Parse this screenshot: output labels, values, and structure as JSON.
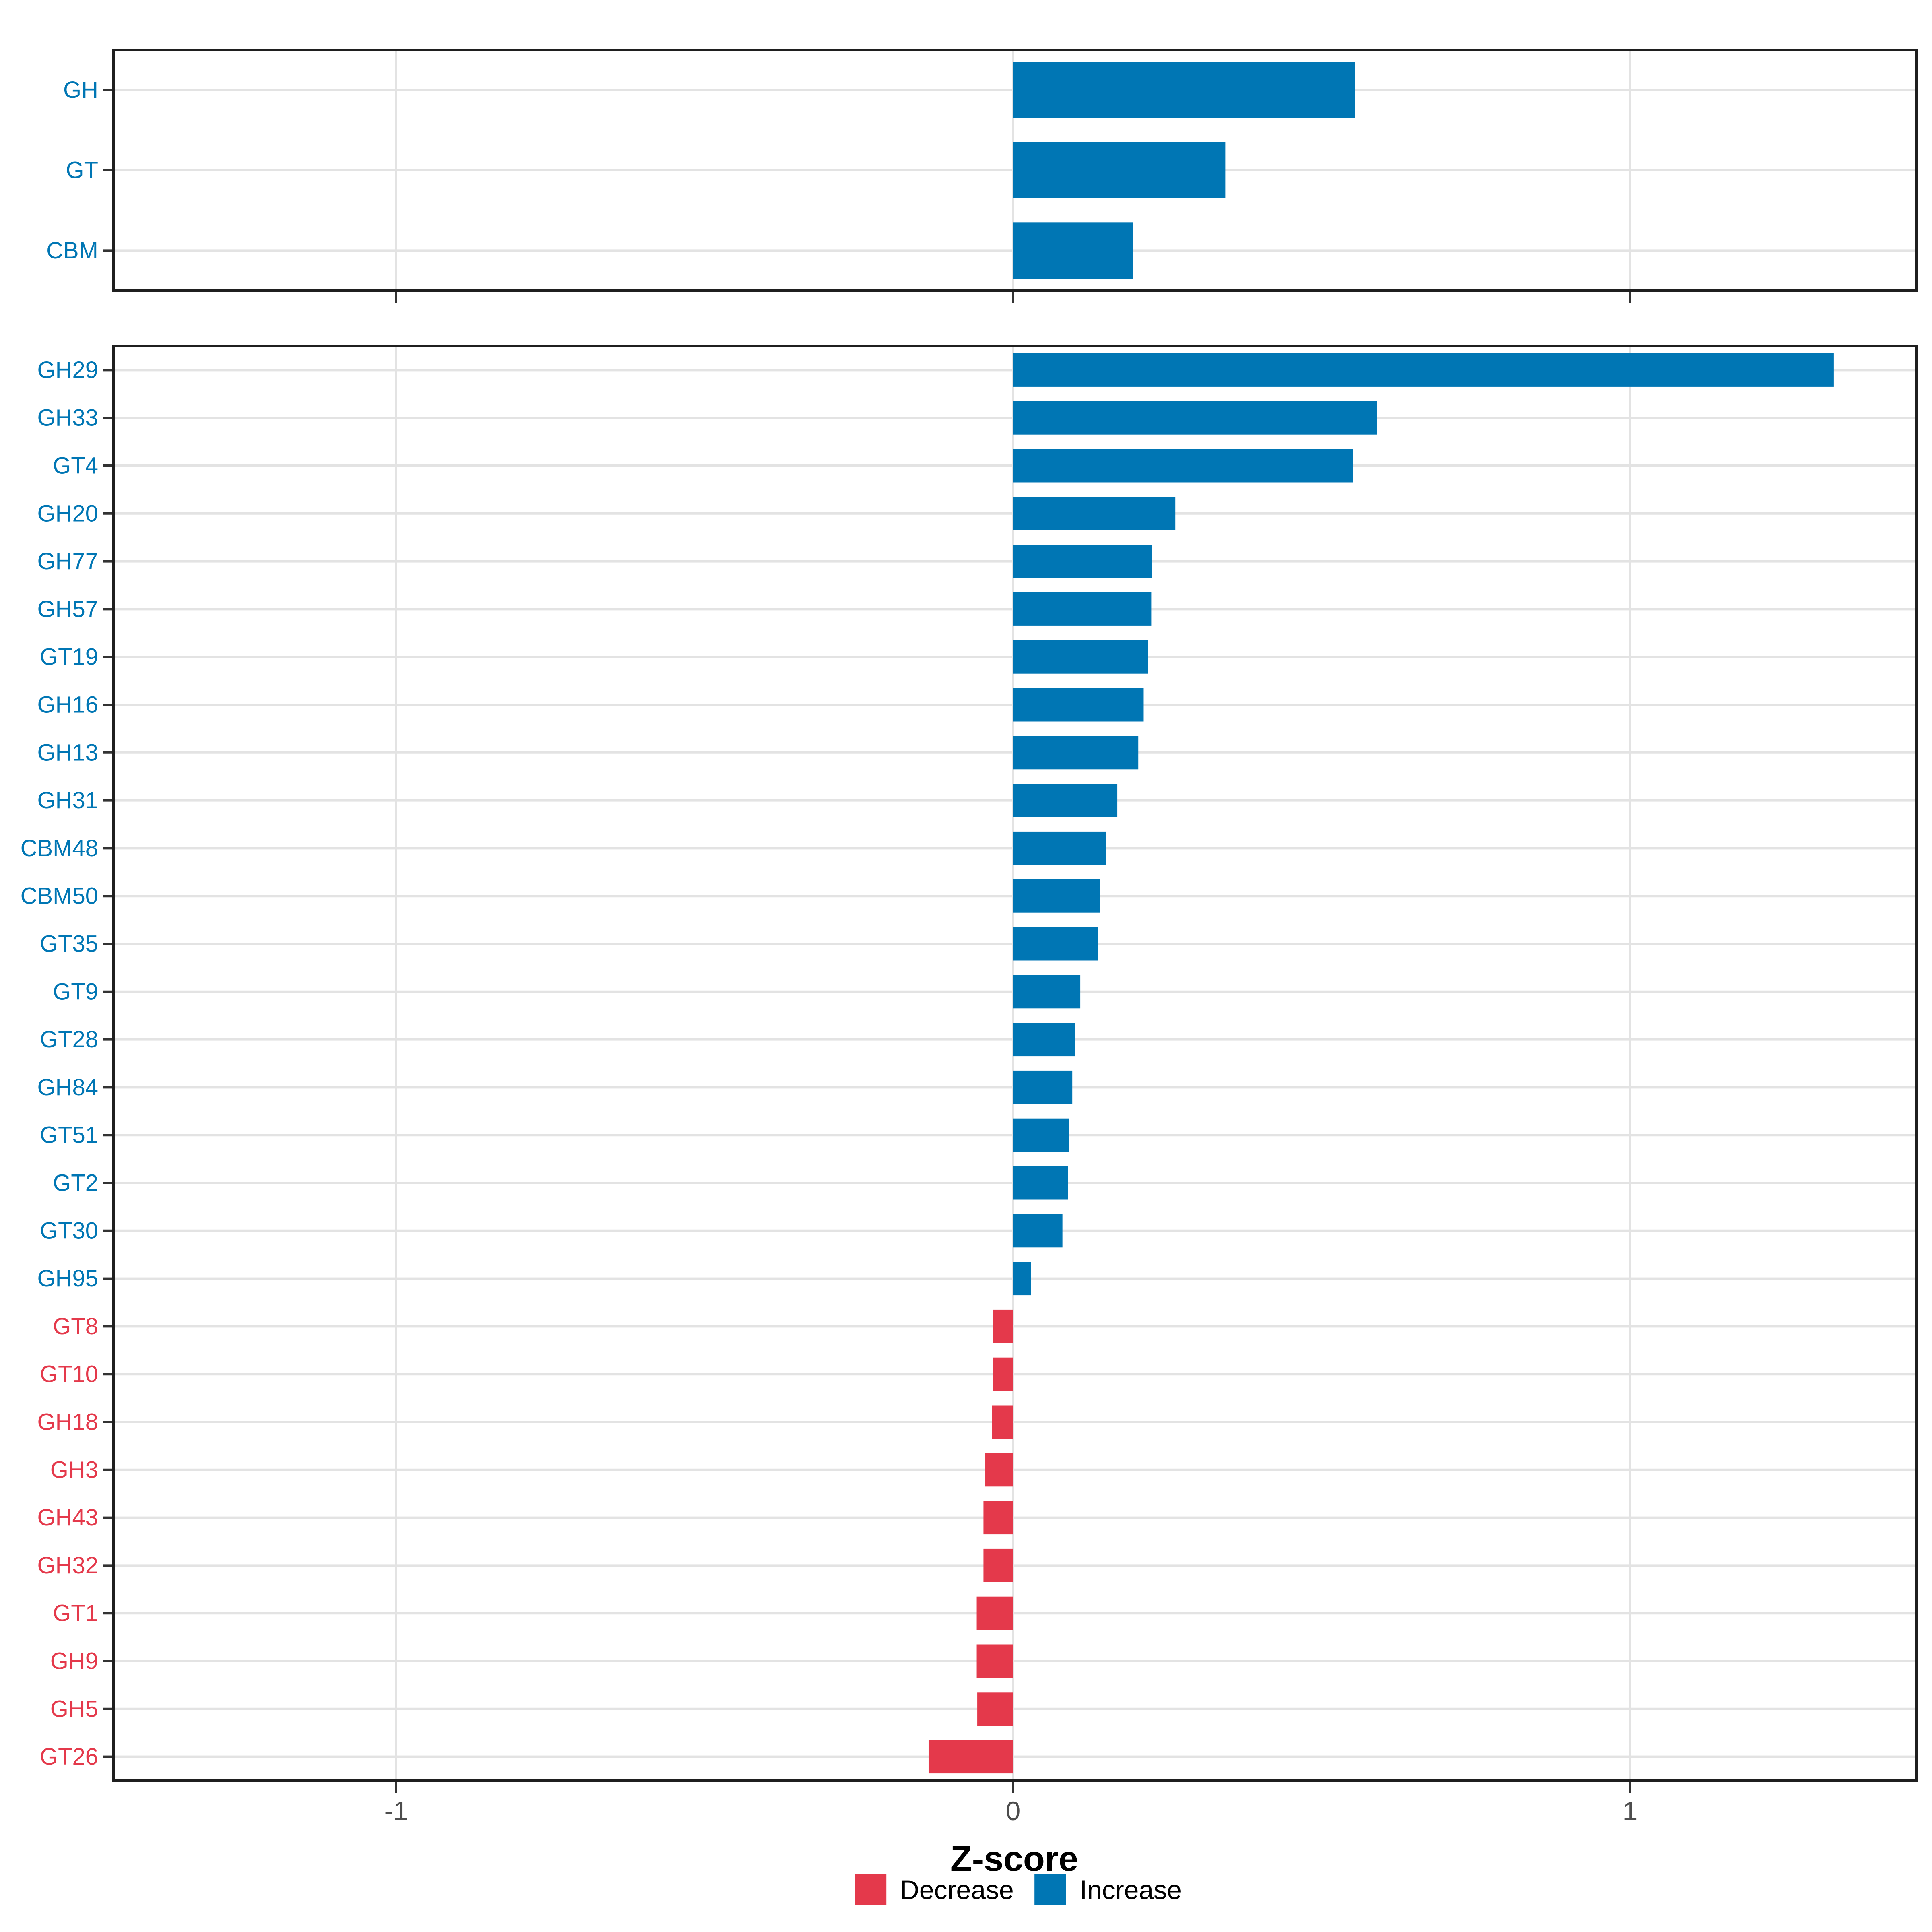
{
  "chart_data": {
    "type": "bar",
    "orientation": "horizontal",
    "xlabel": "Z-score",
    "x_ticks": [
      "-1",
      "0",
      "1"
    ],
    "x_tick_values": [
      -1,
      0,
      1
    ],
    "xlim": [
      -1.46,
      1.46
    ],
    "grid": true,
    "colors": {
      "increase": "#0076B4",
      "decrease": "#E4394B"
    },
    "legend": {
      "position": "bottom",
      "items": [
        {
          "label": "Decrease",
          "color": "#E4394B"
        },
        {
          "label": "Increase",
          "color": "#0076B4"
        }
      ]
    },
    "panels": [
      {
        "name": "summary",
        "categories": [
          "GH",
          "GT",
          "CBM"
        ],
        "values": [
          0.554,
          0.344,
          0.194
        ]
      },
      {
        "name": "families",
        "categories": [
          "GH29",
          "GH33",
          "GT4",
          "GH20",
          "GH77",
          "GH57",
          "GT19",
          "GH16",
          "GH13",
          "GH31",
          "CBM48",
          "CBM50",
          "GT35",
          "GT9",
          "GT28",
          "GH84",
          "GT51",
          "GT2",
          "GT30",
          "GH95",
          "GT8",
          "GT10",
          "GH18",
          "GH3",
          "GH43",
          "GH32",
          "GT1",
          "GH9",
          "GH5",
          "GT26"
        ],
        "values": [
          1.33,
          0.59,
          0.551,
          0.263,
          0.225,
          0.224,
          0.218,
          0.211,
          0.203,
          0.169,
          0.151,
          0.141,
          0.138,
          0.109,
          0.1,
          0.096,
          0.091,
          0.089,
          0.08,
          0.029,
          -0.033,
          -0.033,
          -0.034,
          -0.045,
          -0.048,
          -0.048,
          -0.059,
          -0.059,
          -0.058,
          -0.137
        ]
      }
    ]
  }
}
